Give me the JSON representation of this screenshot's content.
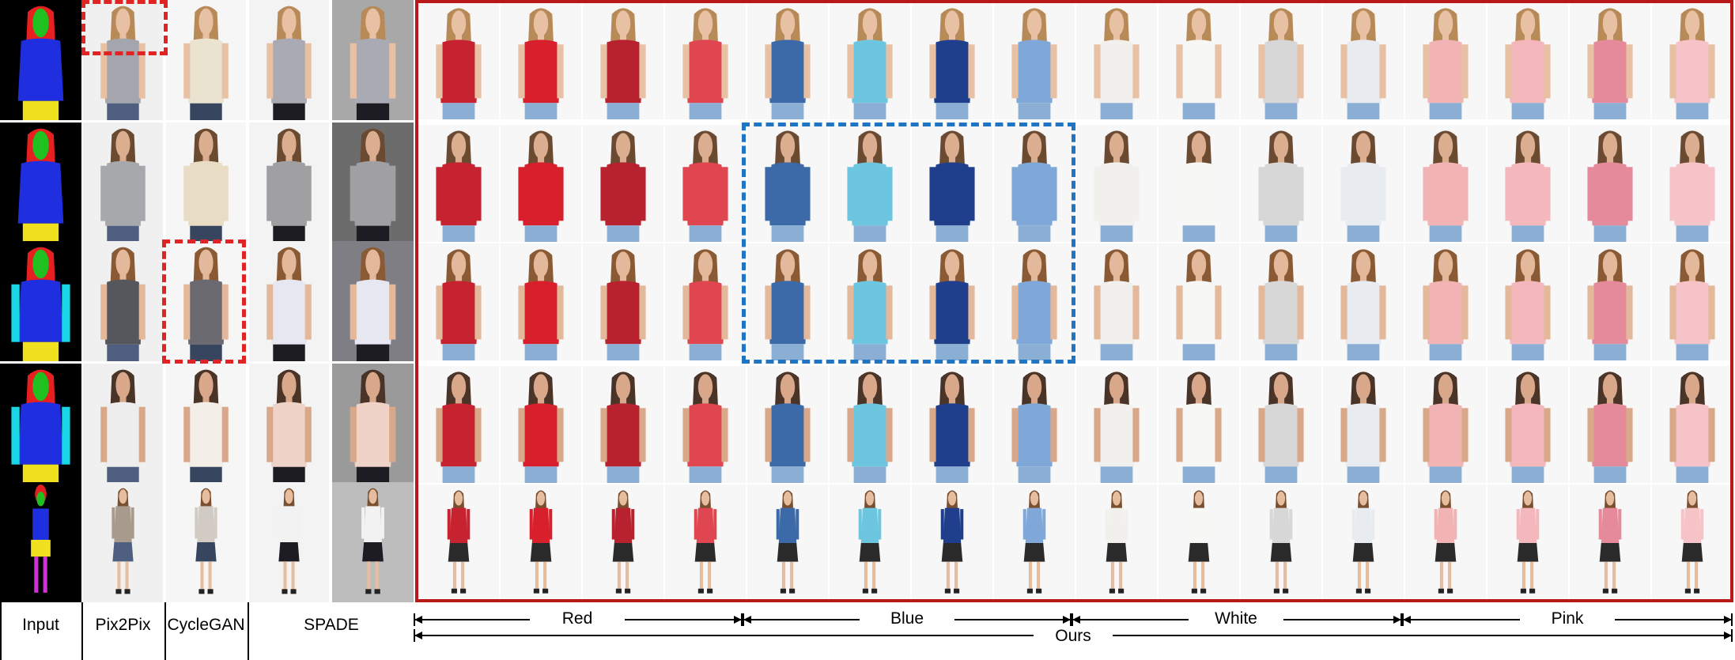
{
  "figure": {
    "column_labels": {
      "input": "Input",
      "pix2pix": "Pix2Pix",
      "cyclegan": "CycleGAN",
      "spade": "SPADE",
      "ours": "Ours"
    },
    "color_groups": [
      {
        "label": "Red",
        "garment_colors": [
          "#c62230",
          "#d8202c",
          "#b8222f",
          "#e04650"
        ]
      },
      {
        "label": "Blue",
        "garment_colors": [
          "#3c6aa8",
          "#6cc6e0",
          "#1f3f8c",
          "#7fa8d8"
        ]
      },
      {
        "label": "White",
        "garment_colors": [
          "#f1f0ec",
          "#f7f7f5",
          "#d7d7d8",
          "#e8ebf0"
        ]
      },
      {
        "label": "Pink",
        "garment_colors": [
          "#f2b3b4",
          "#f4b8bc",
          "#e48a9a",
          "#f6c4c8"
        ]
      }
    ],
    "baseline_colors": {
      "pix2pix": [
        "#a3a6ad",
        "#a7a8ab",
        "#56575d",
        "#ededed",
        "#a89a8d"
      ],
      "cyclegan": [
        "#e9e3cf",
        "#e8dcc4",
        "#6a6a70",
        "#f3eee7",
        "#d2cbc3"
      ],
      "spade": [
        "#a9aab4",
        "#a0a0a3",
        "#e7e7f2",
        "#efd2c8",
        "#f2f2f2"
      ],
      "spade_bg": [
        "#a8a8a8",
        "#6c6c6c",
        "#7e7e84",
        "#9a9a9a",
        "#bdbdbd"
      ]
    },
    "rows": [
      {
        "pose": "sleeveless-top",
        "shot": "half"
      },
      {
        "pose": "long-sleeve-shirt",
        "shot": "half"
      },
      {
        "pose": "camisole",
        "shot": "half"
      },
      {
        "pose": "short-sleeve-blouse",
        "shot": "half"
      },
      {
        "pose": "full-body-skirt",
        "shot": "full"
      }
    ],
    "accents": {
      "ours_frame": "#b81818",
      "failure_box": "#e02424",
      "consistency_box": "#1f74c4"
    }
  }
}
